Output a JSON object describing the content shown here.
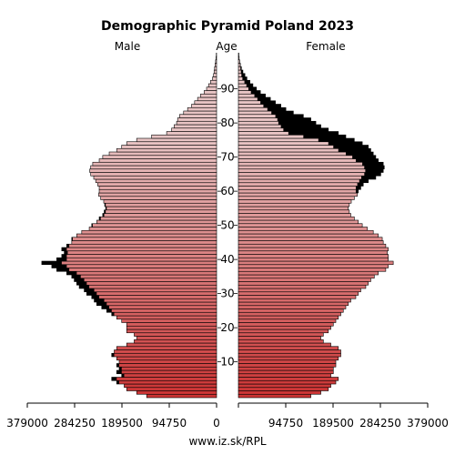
{
  "chart_data": {
    "type": "bar",
    "title": "Demographic Pyramid Poland 2023",
    "left_label": "Male",
    "center_label": "Age",
    "right_label": "Female",
    "source": "www.iz.sk/RPL",
    "x_ticks_left": [
      "379000",
      "284250",
      "189500",
      "94750",
      "0"
    ],
    "x_ticks_right": [
      "94750",
      "189500",
      "284250",
      "379000"
    ],
    "x_tick_values": [
      379000,
      284250,
      189500,
      94750,
      0
    ],
    "age_ticks": [
      "10",
      "20",
      "30",
      "40",
      "50",
      "60",
      "70",
      "80",
      "90"
    ],
    "xlim": [
      0,
      379000
    ],
    "ages": [
      0,
      1,
      2,
      3,
      4,
      5,
      6,
      7,
      8,
      9,
      10,
      11,
      12,
      13,
      14,
      15,
      16,
      17,
      18,
      19,
      20,
      21,
      22,
      23,
      24,
      25,
      26,
      27,
      28,
      29,
      30,
      31,
      32,
      33,
      34,
      35,
      36,
      37,
      38,
      39,
      40,
      41,
      42,
      43,
      44,
      45,
      46,
      47,
      48,
      49,
      50,
      51,
      52,
      53,
      54,
      55,
      56,
      57,
      58,
      59,
      60,
      61,
      62,
      63,
      64,
      65,
      66,
      67,
      68,
      69,
      70,
      71,
      72,
      73,
      74,
      75,
      76,
      77,
      78,
      79,
      80,
      81,
      82,
      83,
      84,
      85,
      86,
      87,
      88,
      89,
      90,
      91,
      92,
      93,
      94,
      95,
      96,
      97,
      98,
      99,
      100
    ],
    "male": [
      140000,
      160000,
      180000,
      185000,
      200000,
      210000,
      190000,
      200000,
      195000,
      200000,
      195000,
      200000,
      210000,
      205000,
      200000,
      180000,
      165000,
      160000,
      165000,
      180000,
      180000,
      180000,
      190000,
      200000,
      210000,
      220000,
      230000,
      240000,
      245000,
      250000,
      260000,
      265000,
      275000,
      280000,
      285000,
      290000,
      300000,
      320000,
      330000,
      350000,
      320000,
      310000,
      305000,
      310000,
      300000,
      290000,
      290000,
      280000,
      270000,
      255000,
      250000,
      240000,
      235000,
      228000,
      225000,
      222000,
      224000,
      226000,
      232000,
      236000,
      235000,
      235000,
      238000,
      242000,
      246000,
      252000,
      254000,
      252000,
      248000,
      235000,
      228000,
      215000,
      200000,
      190000,
      180000,
      160000,
      130000,
      100000,
      90000,
      85000,
      80000,
      78000,
      74000,
      66000,
      58000,
      50000,
      44000,
      38000,
      32000,
      25000,
      20000,
      16000,
      12000,
      8000,
      6000,
      5000,
      4000,
      3000,
      2000,
      1000,
      500
    ],
    "female": [
      145000,
      165000,
      180000,
      185000,
      195000,
      200000,
      185000,
      190000,
      190000,
      195000,
      195000,
      200000,
      205000,
      205000,
      200000,
      185000,
      170000,
      165000,
      170000,
      180000,
      185000,
      190000,
      195000,
      200000,
      205000,
      210000,
      215000,
      220000,
      225000,
      235000,
      240000,
      245000,
      255000,
      260000,
      265000,
      272000,
      280000,
      295000,
      300000,
      310000,
      300000,
      300000,
      298000,
      300000,
      295000,
      290000,
      288000,
      280000,
      270000,
      258000,
      248000,
      240000,
      232000,
      225000,
      222000,
      220000,
      222000,
      226000,
      232000,
      238000,
      240000,
      245000,
      250000,
      260000,
      275000,
      285000,
      290000,
      292000,
      290000,
      280000,
      275000,
      270000,
      265000,
      260000,
      248000,
      232000,
      215000,
      200000,
      180000,
      165000,
      155000,
      145000,
      130000,
      110000,
      95000,
      85000,
      74000,
      64000,
      54000,
      44000,
      36000,
      29000,
      23000,
      17000,
      13000,
      9000,
      6000,
      4000,
      2500,
      1500,
      800
    ],
    "male_excess": [
      0,
      0,
      0,
      0,
      0,
      0,
      0,
      0,
      0,
      0,
      0,
      0,
      0,
      0,
      0,
      0,
      0,
      0,
      0,
      0,
      0,
      0,
      0,
      0,
      0,
      0,
      0,
      0,
      0,
      0,
      0,
      0,
      0,
      0,
      0,
      0,
      0,
      0,
      0,
      0,
      0,
      0,
      0,
      0,
      0,
      0,
      0,
      0,
      0,
      0,
      0,
      0,
      0,
      0,
      0,
      0,
      0,
      0,
      0,
      0,
      0,
      0,
      0,
      0,
      0,
      0,
      0,
      0,
      0,
      0,
      0,
      0,
      0,
      0,
      0,
      0,
      0,
      0,
      0,
      0,
      0,
      0,
      0,
      0,
      0,
      0,
      0,
      0,
      0,
      0,
      0,
      0,
      0,
      0,
      0,
      0,
      0,
      0,
      0,
      0,
      0
    ],
    "female_excess": [
      0,
      0,
      0,
      0,
      0,
      0,
      0,
      0,
      0,
      0,
      0,
      0,
      0,
      0,
      0,
      0,
      0,
      0,
      0,
      0,
      0,
      0,
      0,
      0,
      0,
      0,
      0,
      0,
      0,
      0,
      0,
      0,
      0,
      0,
      0,
      0,
      0,
      0,
      0,
      0,
      0,
      0,
      0,
      0,
      0,
      0,
      0,
      0,
      0,
      0,
      0,
      0,
      0,
      0,
      0,
      0,
      0,
      0,
      0,
      0,
      0,
      0,
      0,
      0,
      0,
      0,
      0,
      0,
      0,
      0,
      0,
      0,
      0,
      0,
      0,
      0,
      0,
      0,
      0,
      0,
      0,
      0,
      0,
      0,
      0,
      0,
      0,
      0,
      0,
      0,
      0,
      0,
      0,
      0,
      0,
      0,
      0,
      0,
      0,
      0,
      0
    ],
    "colors": {
      "young": "#cc3333",
      "old": "#e8c4c4",
      "outline": "#000000",
      "excess": "#000000"
    }
  }
}
